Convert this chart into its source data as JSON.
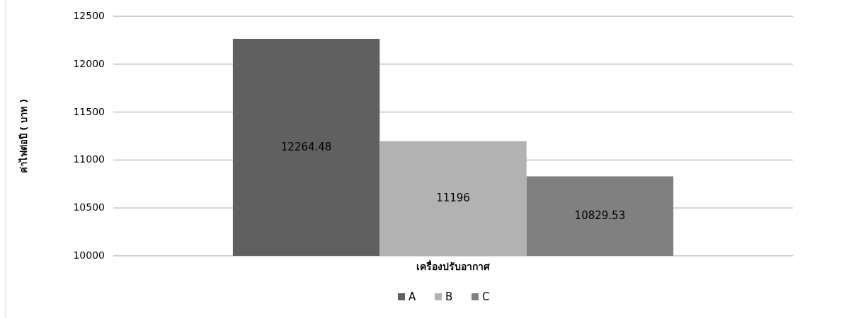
{
  "chart_data": {
    "type": "bar",
    "ylabel": "ค่าไฟต่อปี ( บาท )",
    "categories": [
      "เครื่องปรับอากาศ"
    ],
    "series": [
      {
        "name": "A",
        "color": "#606060",
        "values": [
          12264.48
        ]
      },
      {
        "name": "B",
        "color": "#b2b2b2",
        "values": [
          11196
        ]
      },
      {
        "name": "C",
        "color": "#808080",
        "values": [
          10829.53
        ]
      }
    ],
    "ylim": [
      10000,
      12500
    ],
    "yticks": [
      10000,
      10500,
      11000,
      11500,
      12000,
      12500
    ],
    "grid": "y",
    "legend": "bottom",
    "data_labels": true
  }
}
